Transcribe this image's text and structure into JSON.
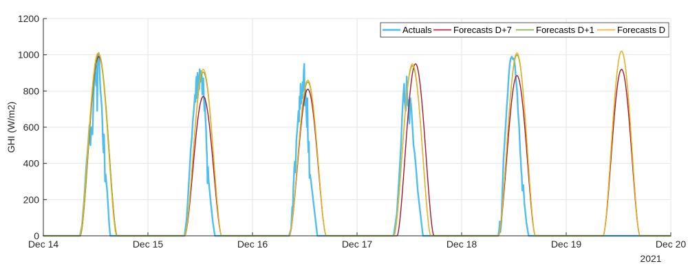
{
  "chart_data": {
    "type": "line",
    "title": "",
    "xlabel": "",
    "ylabel": "GHI (W/m2)",
    "year_label": "2021",
    "x_ticks": [
      "Dec 14",
      "Dec 15",
      "Dec 16",
      "Dec 17",
      "Dec 18",
      "Dec 19",
      "Dec 20"
    ],
    "x_range_days": [
      14,
      20
    ],
    "ylim": [
      0,
      1200
    ],
    "y_ticks": [
      0,
      200,
      400,
      600,
      800,
      1000,
      1200
    ],
    "grid": true,
    "legend_position": "top-right",
    "sunrise_hour": 8.5,
    "sunset_hour": 16.9,
    "series": [
      {
        "name": "Actuals",
        "color": "#4dbeee",
        "width": 2.4,
        "peaks": [
          null,
          null,
          null,
          null,
          null,
          null
        ],
        "points": [
          [
            [
              14.35,
              0
            ],
            [
              14.37,
              60
            ],
            [
              14.39,
              200
            ],
            [
              14.41,
              380
            ],
            [
              14.43,
              520
            ],
            [
              14.44,
              610
            ],
            [
              14.45,
              500
            ],
            [
              14.46,
              600
            ],
            [
              14.47,
              560
            ],
            [
              14.48,
              760
            ],
            [
              14.49,
              910
            ],
            [
              14.5,
              870
            ],
            [
              14.505,
              830
            ],
            [
              14.51,
              940
            ],
            [
              14.515,
              690
            ],
            [
              14.52,
              960
            ],
            [
              14.525,
              1000
            ],
            [
              14.53,
              1010
            ],
            [
              14.535,
              960
            ],
            [
              14.54,
              880
            ],
            [
              14.545,
              810
            ],
            [
              14.55,
              780
            ],
            [
              14.56,
              700
            ],
            [
              14.565,
              620
            ],
            [
              14.57,
              520
            ],
            [
              14.575,
              460
            ],
            [
              14.58,
              560
            ],
            [
              14.585,
              450
            ],
            [
              14.59,
              300
            ],
            [
              14.595,
              340
            ],
            [
              14.6,
              310
            ],
            [
              14.61,
              250
            ],
            [
              14.62,
              160
            ],
            [
              14.63,
              60
            ],
            [
              14.64,
              0
            ]
          ],
          [
            [
              15.35,
              0
            ],
            [
              15.37,
              90
            ],
            [
              15.39,
              280
            ],
            [
              15.41,
              480
            ],
            [
              15.42,
              540
            ],
            [
              15.43,
              640
            ],
            [
              15.44,
              700
            ],
            [
              15.45,
              780
            ],
            [
              15.455,
              740
            ],
            [
              15.46,
              850
            ],
            [
              15.465,
              880
            ],
            [
              15.47,
              760
            ],
            [
              15.475,
              900
            ],
            [
              15.48,
              850
            ],
            [
              15.485,
              880
            ],
            [
              15.49,
              810
            ],
            [
              15.495,
              920
            ],
            [
              15.5,
              850
            ],
            [
              15.505,
              910
            ],
            [
              15.51,
              860
            ],
            [
              15.515,
              890
            ],
            [
              15.52,
              780
            ],
            [
              15.525,
              820
            ],
            [
              15.53,
              870
            ],
            [
              15.535,
              760
            ],
            [
              15.54,
              690
            ],
            [
              15.545,
              760
            ],
            [
              15.55,
              650
            ],
            [
              15.555,
              600
            ],
            [
              15.56,
              500
            ],
            [
              15.565,
              440
            ],
            [
              15.57,
              290
            ],
            [
              15.575,
              380
            ],
            [
              15.58,
              310
            ],
            [
              15.6,
              190
            ],
            [
              15.62,
              80
            ],
            [
              15.64,
              0
            ]
          ],
          [
            [
              16.35,
              0
            ],
            [
              16.37,
              40
            ],
            [
              16.38,
              160
            ],
            [
              16.385,
              140
            ],
            [
              16.39,
              250
            ],
            [
              16.4,
              380
            ],
            [
              16.405,
              410
            ],
            [
              16.41,
              350
            ],
            [
              16.42,
              530
            ],
            [
              16.43,
              600
            ],
            [
              16.44,
              690
            ],
            [
              16.445,
              630
            ],
            [
              16.45,
              770
            ],
            [
              16.455,
              700
            ],
            [
              16.46,
              840
            ],
            [
              16.465,
              730
            ],
            [
              16.47,
              790
            ],
            [
              16.475,
              760
            ],
            [
              16.48,
              850
            ],
            [
              16.485,
              800
            ],
            [
              16.49,
              910
            ],
            [
              16.495,
              950
            ],
            [
              16.5,
              720
            ],
            [
              16.505,
              810
            ],
            [
              16.51,
              760
            ],
            [
              16.515,
              680
            ],
            [
              16.52,
              600
            ],
            [
              16.525,
              760
            ],
            [
              16.53,
              540
            ],
            [
              16.535,
              460
            ],
            [
              16.54,
              520
            ],
            [
              16.545,
              320
            ],
            [
              16.55,
              340
            ],
            [
              16.56,
              300
            ],
            [
              16.58,
              200
            ],
            [
              16.6,
              100
            ],
            [
              16.62,
              0
            ]
          ],
          [
            [
              17.35,
              0
            ],
            [
              17.38,
              120
            ],
            [
              17.4,
              300
            ],
            [
              17.42,
              500
            ],
            [
              17.43,
              650
            ],
            [
              17.44,
              760
            ],
            [
              17.45,
              840
            ],
            [
              17.455,
              740
            ],
            [
              17.46,
              720
            ],
            [
              17.465,
              690
            ],
            [
              17.47,
              760
            ],
            [
              17.475,
              880
            ],
            [
              17.48,
              780
            ],
            [
              17.485,
              720
            ],
            [
              17.49,
              750
            ],
            [
              17.5,
              620
            ],
            [
              17.51,
              760
            ],
            [
              17.52,
              700
            ],
            [
              17.53,
              600
            ],
            [
              17.54,
              500
            ],
            [
              17.55,
              460
            ],
            [
              17.56,
              400
            ],
            [
              17.57,
              330
            ],
            [
              17.58,
              250
            ],
            [
              17.6,
              150
            ],
            [
              17.62,
              50
            ],
            [
              17.63,
              0
            ]
          ],
          [
            [
              18.35,
              0
            ],
            [
              18.36,
              40
            ],
            [
              18.365,
              80
            ],
            [
              18.37,
              20
            ],
            [
              18.38,
              80
            ],
            [
              18.39,
              250
            ],
            [
              18.4,
              420
            ],
            [
              18.42,
              600
            ],
            [
              18.43,
              700
            ],
            [
              18.44,
              780
            ],
            [
              18.45,
              880
            ],
            [
              18.46,
              950
            ],
            [
              18.47,
              980
            ],
            [
              18.48,
              990
            ],
            [
              18.49,
              975
            ],
            [
              18.5,
              980
            ],
            [
              18.51,
              940
            ],
            [
              18.52,
              860
            ],
            [
              18.53,
              800
            ],
            [
              18.54,
              680
            ],
            [
              18.55,
              600
            ],
            [
              18.56,
              460
            ],
            [
              18.565,
              420
            ],
            [
              18.57,
              360
            ],
            [
              18.575,
              330
            ],
            [
              18.58,
              250
            ],
            [
              18.59,
              280
            ],
            [
              18.6,
              180
            ],
            [
              18.62,
              70
            ],
            [
              18.64,
              0
            ]
          ]
        ]
      },
      {
        "name": "Forecasts D+7",
        "color": "#a2142f",
        "width": 1.4,
        "peaks": [
          990,
          770,
          810,
          950,
          885,
          920
        ],
        "offsets": [
          0,
          0,
          0,
          0.03,
          0,
          0
        ]
      },
      {
        "name": "Forecasts D+1",
        "color": "#77ac30",
        "width": 1.4,
        "peaks": [
          1005,
          905,
          850,
          940,
          1000,
          1020
        ],
        "offsets": [
          0,
          0,
          0,
          0,
          0,
          0
        ]
      },
      {
        "name": "Forecasts D",
        "color": "#edb120",
        "width": 1.4,
        "peaks": [
          1010,
          920,
          860,
          950,
          1010,
          1020
        ],
        "offsets": [
          -0.005,
          0,
          0,
          0,
          0,
          0
        ]
      }
    ]
  }
}
